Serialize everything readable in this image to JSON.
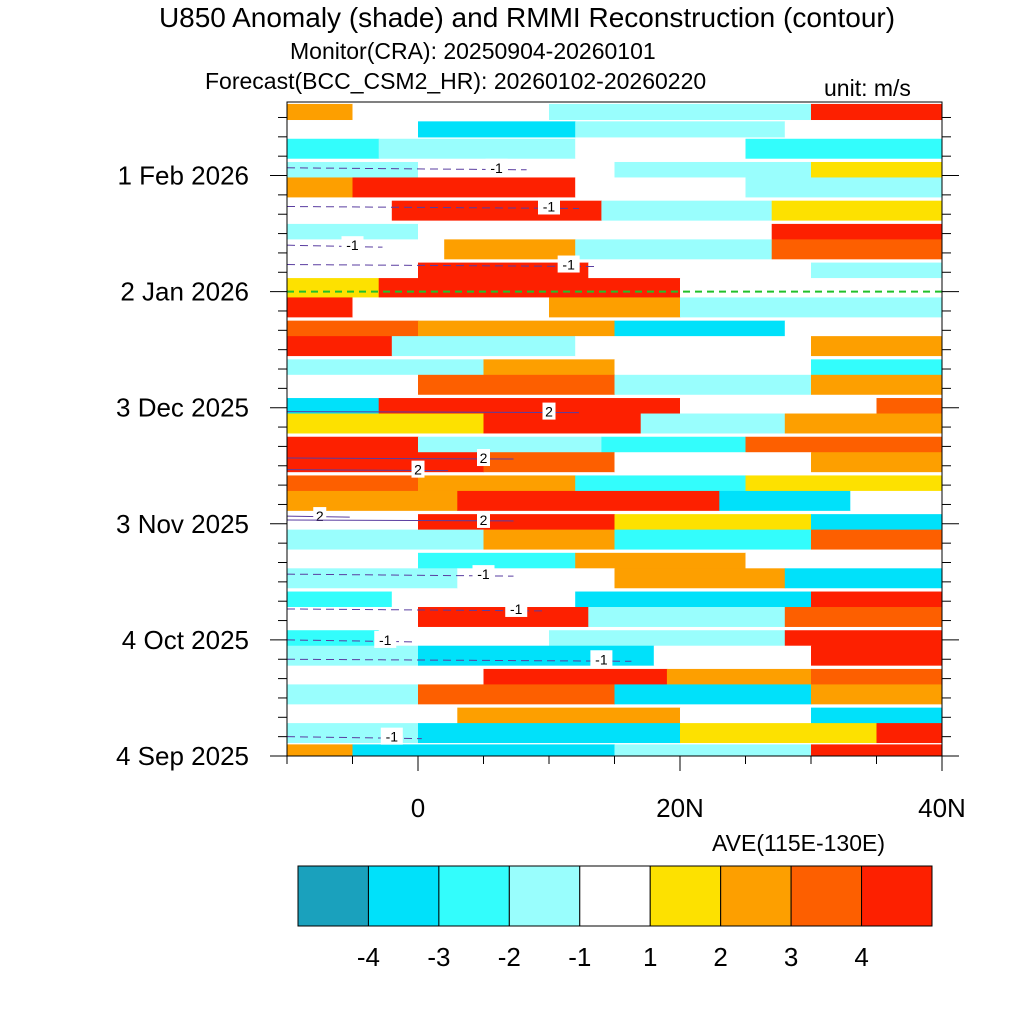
{
  "title": "U850 Anomaly (shade) and RMMI Reconstruction (contour)",
  "subtitle_monitor": "Monitor(CRA): 20250904-20260101",
  "subtitle_forecast": "Forecast(BCC_CSM2_HR): 20260102-20260220",
  "unit": "unit: m/s",
  "averaging": "AVE(115E-130E)",
  "chart_data": {
    "type": "heatmap",
    "variable": "U850 anomaly",
    "x_axis": {
      "range": [
        -10,
        40
      ],
      "ticks": [
        0,
        20,
        40
      ],
      "tick_labels": [
        "0",
        "20N",
        "40N"
      ]
    },
    "y_axis": {
      "range_days_from_start": [
        0,
        169
      ],
      "start_date": "2025-09-04",
      "end_date": "2026-02-20",
      "ticks": [
        0,
        30,
        60,
        90,
        120,
        150
      ],
      "tick_labels": [
        "4 Sep 2025",
        "4 Oct 2025",
        "3 Nov 2025",
        "3 Dec 2025",
        "2 Jan 2026",
        "1 Feb 2026"
      ]
    },
    "forecast_start_day": 120,
    "colorbar": {
      "levels": [
        -4,
        -3,
        -2,
        -1,
        1,
        2,
        3,
        4
      ],
      "labels": [
        "-4",
        "-3",
        "-2",
        "-1",
        "1",
        "2",
        "3",
        "4"
      ],
      "colors": [
        "#1aa1bd",
        "#00e1fa",
        "#33fdfc",
        "#99fefd",
        "#ffffff",
        "#fde100",
        "#fd9f00",
        "#fd5f00",
        "#fd2000"
      ]
    },
    "contour_labels": [
      {
        "text": "-1",
        "lat": 6.0,
        "day": 152
      },
      {
        "text": "-1",
        "lat": 10.0,
        "day": 142
      },
      {
        "text": "-1",
        "lat": -5.0,
        "day": 132
      },
      {
        "text": "-1",
        "lat": 11.5,
        "day": 127
      },
      {
        "text": "2",
        "lat": 10.0,
        "day": 89
      },
      {
        "text": "2",
        "lat": 5.0,
        "day": 77
      },
      {
        "text": "2",
        "lat": 0.0,
        "day": 74
      },
      {
        "text": "2",
        "lat": -7.5,
        "day": 62
      },
      {
        "text": "2",
        "lat": 5.0,
        "day": 61
      },
      {
        "text": "-1",
        "lat": 5.0,
        "day": 47
      },
      {
        "text": "-1",
        "lat": 7.5,
        "day": 38
      },
      {
        "text": "-1",
        "lat": -2.5,
        "day": 30
      },
      {
        "text": "-1",
        "lat": 14.0,
        "day": 25
      },
      {
        "text": "-1",
        "lat": -2.0,
        "day": 5
      }
    ],
    "bands": [
      {
        "day": 166.5,
        "h": 4.0,
        "segs": [
          [
            -10,
            -5,
            2
          ],
          [
            -5,
            10,
            -1
          ],
          [
            10,
            30,
            -2
          ],
          [
            30,
            40,
            4
          ]
        ]
      },
      {
        "day": 162.0,
        "h": 4.0,
        "segs": [
          [
            -10,
            0,
            -1
          ],
          [
            0,
            12,
            -4
          ],
          [
            12,
            28,
            -2
          ],
          [
            28,
            40,
            -1
          ]
        ]
      },
      {
        "day": 157.0,
        "h": 5.0,
        "segs": [
          [
            -10,
            -3,
            -3
          ],
          [
            -3,
            12,
            -2
          ],
          [
            12,
            25,
            0
          ],
          [
            25,
            40,
            -3
          ]
        ]
      },
      {
        "day": 151.5,
        "h": 4.0,
        "segs": [
          [
            -10,
            0,
            -2
          ],
          [
            0,
            15,
            -1
          ],
          [
            15,
            30,
            -2
          ],
          [
            30,
            40,
            1
          ]
        ]
      },
      {
        "day": 147.0,
        "h": 5.0,
        "segs": [
          [
            -10,
            -5,
            2
          ],
          [
            -5,
            12,
            4
          ],
          [
            12,
            25,
            -1
          ],
          [
            25,
            40,
            -2
          ]
        ]
      },
      {
        "day": 141.0,
        "h": 5.0,
        "segs": [
          [
            -10,
            -2,
            -1
          ],
          [
            -2,
            14,
            4
          ],
          [
            14,
            27,
            -2
          ],
          [
            27,
            40,
            1
          ]
        ]
      },
      {
        "day": 135.5,
        "h": 4.0,
        "segs": [
          [
            -10,
            0,
            -2
          ],
          [
            0,
            15,
            -1
          ],
          [
            15,
            27,
            0
          ],
          [
            27,
            40,
            4
          ]
        ]
      },
      {
        "day": 131.0,
        "h": 5.0,
        "segs": [
          [
            -10,
            2,
            -1
          ],
          [
            2,
            12,
            2
          ],
          [
            12,
            27,
            -2
          ],
          [
            27,
            40,
            3
          ]
        ]
      },
      {
        "day": 125.5,
        "h": 4.0,
        "segs": [
          [
            -10,
            0,
            -1
          ],
          [
            0,
            13,
            4
          ],
          [
            13,
            30,
            0
          ],
          [
            30,
            40,
            -2
          ]
        ]
      },
      {
        "day": 121.0,
        "h": 5.0,
        "segs": [
          [
            -10,
            -3,
            1
          ],
          [
            -3,
            20,
            4
          ],
          [
            20,
            40,
            -1
          ]
        ]
      },
      {
        "day": 116.0,
        "h": 5.0,
        "segs": [
          [
            -10,
            -5,
            4
          ],
          [
            -5,
            10,
            -1
          ],
          [
            10,
            20,
            2
          ],
          [
            20,
            40,
            -2
          ]
        ]
      },
      {
        "day": 110.5,
        "h": 4.0,
        "segs": [
          [
            -10,
            0,
            3
          ],
          [
            0,
            15,
            2
          ],
          [
            15,
            28,
            -4
          ],
          [
            28,
            40,
            -1
          ]
        ]
      },
      {
        "day": 106.0,
        "h": 5.0,
        "segs": [
          [
            -10,
            -2,
            4
          ],
          [
            -2,
            12,
            -2
          ],
          [
            12,
            30,
            -1
          ],
          [
            30,
            40,
            2
          ]
        ]
      },
      {
        "day": 100.5,
        "h": 4.0,
        "segs": [
          [
            -10,
            5,
            -2
          ],
          [
            5,
            15,
            2
          ],
          [
            15,
            30,
            0
          ],
          [
            30,
            40,
            -3
          ]
        ]
      },
      {
        "day": 96.0,
        "h": 5.0,
        "segs": [
          [
            -10,
            0,
            0
          ],
          [
            0,
            15,
            3
          ],
          [
            15,
            30,
            -2
          ],
          [
            30,
            40,
            2
          ]
        ]
      },
      {
        "day": 90.5,
        "h": 4.0,
        "segs": [
          [
            -10,
            -3,
            -4
          ],
          [
            -3,
            20,
            4
          ],
          [
            20,
            35,
            0
          ],
          [
            35,
            40,
            3
          ]
        ]
      },
      {
        "day": 86.0,
        "h": 5.0,
        "segs": [
          [
            -10,
            5,
            1
          ],
          [
            5,
            17,
            4
          ],
          [
            17,
            28,
            -2
          ],
          [
            28,
            40,
            2
          ]
        ]
      },
      {
        "day": 80.5,
        "h": 4.0,
        "segs": [
          [
            -10,
            0,
            4
          ],
          [
            0,
            14,
            -2
          ],
          [
            14,
            25,
            -3
          ],
          [
            25,
            40,
            3
          ]
        ]
      },
      {
        "day": 76.0,
        "h": 5.0,
        "segs": [
          [
            -10,
            5,
            4
          ],
          [
            5,
            15,
            3
          ],
          [
            15,
            30,
            0
          ],
          [
            30,
            40,
            2
          ]
        ]
      },
      {
        "day": 70.5,
        "h": 4.0,
        "segs": [
          [
            -10,
            0,
            3
          ],
          [
            0,
            12,
            2
          ],
          [
            12,
            25,
            -3
          ],
          [
            25,
            40,
            1
          ]
        ]
      },
      {
        "day": 66.0,
        "h": 5.0,
        "segs": [
          [
            -10,
            3,
            2
          ],
          [
            3,
            23,
            4
          ],
          [
            23,
            33,
            -4
          ],
          [
            33,
            40,
            -1
          ]
        ]
      },
      {
        "day": 60.5,
        "h": 4.0,
        "segs": [
          [
            -10,
            0,
            -1
          ],
          [
            0,
            15,
            4
          ],
          [
            15,
            30,
            1
          ],
          [
            30,
            40,
            -4
          ]
        ]
      },
      {
        "day": 56.0,
        "h": 5.0,
        "segs": [
          [
            -10,
            5,
            -2
          ],
          [
            5,
            15,
            2
          ],
          [
            15,
            30,
            -3
          ],
          [
            30,
            40,
            3
          ]
        ]
      },
      {
        "day": 50.5,
        "h": 4.0,
        "segs": [
          [
            -10,
            0,
            -1
          ],
          [
            0,
            12,
            -3
          ],
          [
            12,
            25,
            2
          ],
          [
            25,
            40,
            -1
          ]
        ]
      },
      {
        "day": 46.0,
        "h": 5.0,
        "segs": [
          [
            -10,
            3,
            -2
          ],
          [
            3,
            15,
            -1
          ],
          [
            15,
            28,
            2
          ],
          [
            28,
            40,
            -4
          ]
        ]
      },
      {
        "day": 40.5,
        "h": 4.0,
        "segs": [
          [
            -10,
            -2,
            -3
          ],
          [
            -2,
            12,
            -1
          ],
          [
            12,
            30,
            -4
          ],
          [
            30,
            40,
            4
          ]
        ]
      },
      {
        "day": 36.0,
        "h": 5.0,
        "segs": [
          [
            -10,
            0,
            -1
          ],
          [
            0,
            13,
            4
          ],
          [
            13,
            28,
            -2
          ],
          [
            28,
            40,
            3
          ]
        ]
      },
      {
        "day": 30.5,
        "h": 4.0,
        "segs": [
          [
            -10,
            -3,
            -3
          ],
          [
            -3,
            10,
            -1
          ],
          [
            10,
            28,
            -2
          ],
          [
            28,
            40,
            4
          ]
        ]
      },
      {
        "day": 26.0,
        "h": 5.0,
        "segs": [
          [
            -10,
            0,
            -2
          ],
          [
            0,
            18,
            -4
          ],
          [
            18,
            30,
            -1
          ],
          [
            30,
            40,
            4
          ]
        ]
      },
      {
        "day": 20.5,
        "h": 4.0,
        "segs": [
          [
            -10,
            5,
            0
          ],
          [
            5,
            19,
            4
          ],
          [
            19,
            30,
            2
          ],
          [
            30,
            40,
            3
          ]
        ]
      },
      {
        "day": 16.0,
        "h": 5.0,
        "segs": [
          [
            -10,
            0,
            -2
          ],
          [
            0,
            15,
            3
          ],
          [
            15,
            30,
            -4
          ],
          [
            30,
            40,
            2
          ]
        ]
      },
      {
        "day": 10.5,
        "h": 4.0,
        "segs": [
          [
            -10,
            3,
            -1
          ],
          [
            3,
            20,
            2
          ],
          [
            20,
            30,
            -1
          ],
          [
            30,
            40,
            -4
          ]
        ]
      },
      {
        "day": 6.0,
        "h": 5.0,
        "segs": [
          [
            -10,
            0,
            -2
          ],
          [
            0,
            20,
            -4
          ],
          [
            20,
            35,
            1
          ],
          [
            35,
            40,
            4
          ]
        ]
      },
      {
        "day": 1.5,
        "h": 3.0,
        "segs": [
          [
            -10,
            -5,
            2
          ],
          [
            -5,
            15,
            -4
          ],
          [
            15,
            30,
            -2
          ],
          [
            30,
            40,
            4
          ]
        ]
      }
    ]
  }
}
